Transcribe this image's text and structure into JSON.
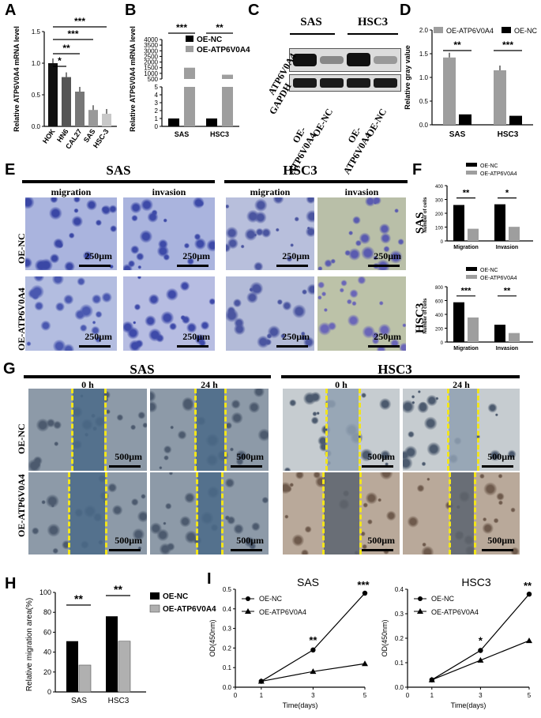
{
  "panel_letters": [
    "A",
    "B",
    "C",
    "D",
    "E",
    "F",
    "G",
    "H",
    "I"
  ],
  "colors": {
    "nc": "#000000",
    "oe": "#9e9e9e",
    "gray": "#b3b3b3",
    "scratch": "#f2e51a"
  },
  "A": {
    "ylabel": "Relative ATP6V0A4 mRNA level",
    "sig": [
      "*",
      "**",
      "***",
      "***"
    ]
  },
  "B": {
    "ylabel": "Relative ATP6V0A4 mRNA level",
    "sig": [
      "***",
      "**"
    ],
    "legend": [
      "OE-NC",
      "OE-ATP6V0A4"
    ]
  },
  "C": {
    "groups": [
      "SAS",
      "HSC3"
    ],
    "rows": [
      "ATP6V0A4",
      "GAPDH"
    ],
    "lanes": [
      "OE-ATP6V0A4",
      "OE-NC",
      "OE-ATP6V0A4",
      "OE-NC"
    ]
  },
  "D": {
    "ylabel": "Relative gray value",
    "sig": [
      "**",
      "***"
    ],
    "legend": [
      "OE-ATP6V0A4",
      "OE-NC"
    ]
  },
  "E": {
    "groups": [
      "SAS",
      "HSC3"
    ],
    "cols": [
      "migration",
      "invasion",
      "migration",
      "invasion"
    ],
    "rows": [
      "OE-NC",
      "OE-ATP6V0A4"
    ],
    "scale": "250μm"
  },
  "F": {
    "ylabel": "Number of cells",
    "legend": [
      "OE-NC",
      "OE-ATP6V0A4"
    ],
    "sas_label": "SAS",
    "hsc3_label": "HSC3",
    "sas_sig": [
      "**",
      "*"
    ],
    "hsc3_sig": [
      "***",
      "**"
    ]
  },
  "G": {
    "groups": [
      "SAS",
      "HSC3"
    ],
    "times": [
      "0 h",
      "24 h",
      "0 h",
      "24 h"
    ],
    "rows": [
      "OE-NC",
      "OE-ATP6V0A4"
    ],
    "scale": "500μm"
  },
  "H": {
    "ylabel": "Relative migration area(%)",
    "sig": [
      "**",
      "**"
    ],
    "legend": [
      "OE-NC",
      "OE-ATP6V0A4"
    ]
  },
  "I": {
    "xlabel": "Time(days)",
    "ylabel": "OD(450nm)",
    "legend": [
      "OE-NC",
      "OE-ATP6V0A4"
    ],
    "sas_title": "SAS",
    "hsc3_title": "HSC3",
    "sas_sig": [
      "**",
      "***"
    ],
    "hsc3_sig": [
      "*",
      "**"
    ]
  },
  "chart_data": [
    {
      "id": "A",
      "type": "bar",
      "categories": [
        "HOK",
        "HN6",
        "CAL27",
        "SAS",
        "HSC-3"
      ],
      "values": [
        1.0,
        0.78,
        0.55,
        0.26,
        0.2
      ],
      "ylim": [
        0,
        1.5
      ],
      "yticks": [
        0.0,
        0.5,
        1.0,
        1.5
      ]
    },
    {
      "id": "B",
      "type": "bar",
      "categories": [
        "SAS",
        "HSC3"
      ],
      "series": [
        {
          "name": "OE-NC",
          "values": [
            1,
            1
          ]
        },
        {
          "name": "OE-ATP6V0A4",
          "values": [
            1500,
            880
          ]
        }
      ],
      "yticks_low": [
        0,
        1,
        2,
        3,
        4,
        5
      ],
      "yticks_high": [
        500,
        1000,
        1500,
        2000,
        2500,
        3000,
        3500,
        4000
      ]
    },
    {
      "id": "D",
      "type": "bar",
      "categories": [
        "SAS",
        "HSC3"
      ],
      "series": [
        {
          "name": "OE-ATP6V0A4",
          "values": [
            1.42,
            1.15
          ]
        },
        {
          "name": "OE-NC",
          "values": [
            0.22,
            0.19
          ]
        }
      ],
      "ylim": [
        0,
        2.0
      ],
      "yticks": [
        0.0,
        0.5,
        1.0,
        1.5,
        2.0
      ]
    },
    {
      "id": "F-SAS",
      "type": "bar",
      "categories": [
        "Migration",
        "Invasion"
      ],
      "series": [
        {
          "name": "OE-NC",
          "values": [
            260,
            265
          ]
        },
        {
          "name": "OE-ATP6V0A4",
          "values": [
            88,
            102
          ]
        }
      ],
      "ylim": [
        0,
        400
      ],
      "yticks": [
        0,
        100,
        200,
        300,
        400
      ]
    },
    {
      "id": "F-HSC3",
      "type": "bar",
      "categories": [
        "Migration",
        "Invasion"
      ],
      "series": [
        {
          "name": "OE-NC",
          "values": [
            575,
            250
          ]
        },
        {
          "name": "OE-ATP6V0A4",
          "values": [
            355,
            130
          ]
        }
      ],
      "ylim": [
        0,
        800
      ],
      "yticks": [
        0,
        200,
        400,
        600,
        800
      ]
    },
    {
      "id": "H",
      "type": "bar",
      "categories": [
        "SAS",
        "HSC3"
      ],
      "series": [
        {
          "name": "OE-NC",
          "values": [
            51,
            76
          ]
        },
        {
          "name": "OE-ATP6V0A4",
          "values": [
            27,
            51
          ]
        }
      ],
      "ylim": [
        0,
        100
      ],
      "yticks": [
        0,
        20,
        40,
        60,
        80,
        100
      ]
    },
    {
      "id": "I-SAS",
      "type": "line",
      "x": [
        1,
        3,
        5
      ],
      "series": [
        {
          "name": "OE-NC",
          "values": [
            0.03,
            0.19,
            0.48
          ]
        },
        {
          "name": "OE-ATP6V0A4",
          "values": [
            0.03,
            0.08,
            0.12
          ]
        }
      ],
      "ylim": [
        0,
        0.5
      ],
      "yticks": [
        0.0,
        0.1,
        0.2,
        0.3,
        0.4,
        0.5
      ],
      "xticks": [
        0,
        1,
        3,
        5
      ]
    },
    {
      "id": "I-HSC3",
      "type": "line",
      "x": [
        1,
        3,
        5
      ],
      "series": [
        {
          "name": "OE-NC",
          "values": [
            0.03,
            0.15,
            0.38
          ]
        },
        {
          "name": "OE-ATP6V0A4",
          "values": [
            0.03,
            0.11,
            0.19
          ]
        }
      ],
      "ylim": [
        0,
        0.4
      ],
      "yticks": [
        0.0,
        0.1,
        0.2,
        0.3,
        0.4
      ],
      "xticks": [
        0,
        1,
        3,
        5
      ]
    }
  ]
}
